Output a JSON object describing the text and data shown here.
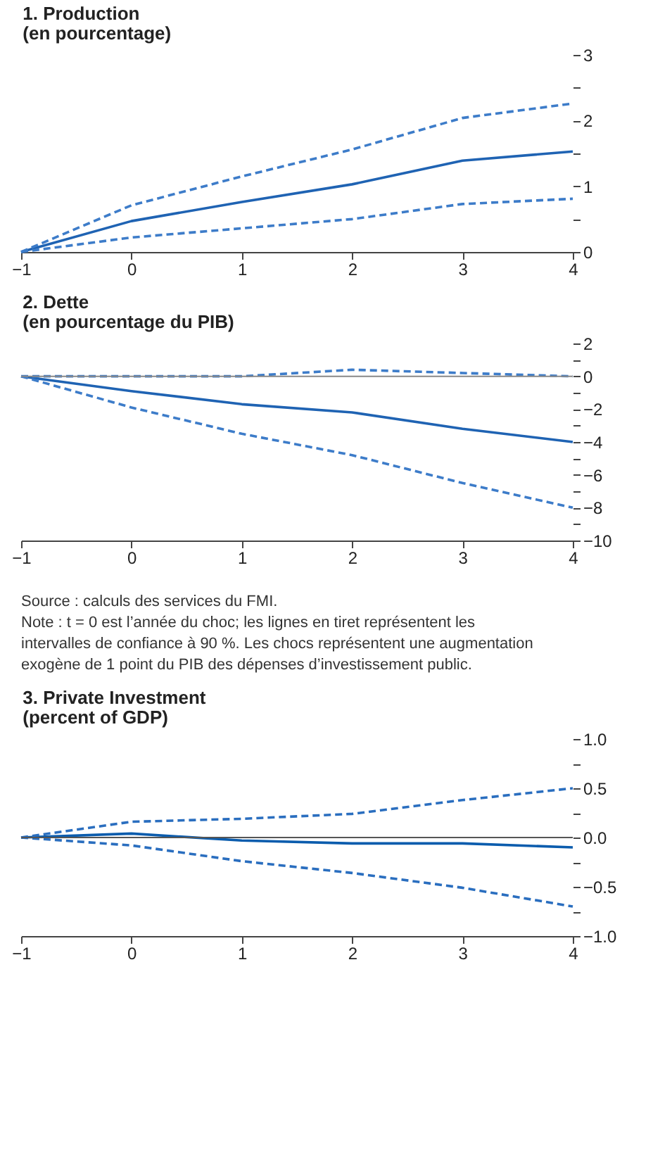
{
  "chart_data": [
    {
      "type": "line",
      "title": "1. Production",
      "subtitle": "(en pourcentage)",
      "x": [
        -1,
        0,
        1,
        2,
        3,
        4
      ],
      "xlim": [
        -1,
        4
      ],
      "xticks": [
        -1,
        0,
        1,
        2,
        3,
        4
      ],
      "ylim": [
        0,
        3
      ],
      "yticks": [
        0,
        {
          "value": 0.5,
          "label": null
        },
        1,
        {
          "value": 1.5,
          "label": null
        },
        2,
        {
          "value": 2.5,
          "label": null
        },
        3
      ],
      "grid": false,
      "series": [
        {
          "color": "#1f63b3",
          "line_style": "solid",
          "values": [
            0,
            0.47,
            0.76,
            1.03,
            1.39,
            1.53
          ]
        },
        {
          "color": "#3d7cc9",
          "line_style": "dashed",
          "values": [
            0,
            0.71,
            1.15,
            1.56,
            2.04,
            2.26
          ]
        },
        {
          "color": "#3d7cc9",
          "line_style": "dashed",
          "values": [
            0,
            0.22,
            0.36,
            0.5,
            0.73,
            0.81
          ]
        }
      ]
    },
    {
      "type": "line",
      "title": "2. Dette",
      "subtitle": "(en pourcentage du PIB)",
      "x": [
        -1,
        0,
        1,
        2,
        3,
        4
      ],
      "xlim": [
        -1,
        4
      ],
      "xticks": [
        -1,
        0,
        1,
        2,
        3,
        4
      ],
      "ylim": [
        -10,
        2
      ],
      "yticks": [
        -10,
        {
          "value": -9,
          "label": null
        },
        -8,
        {
          "value": -7,
          "label": null
        },
        -6,
        {
          "value": -5,
          "label": null
        },
        -4,
        {
          "value": -3,
          "label": null
        },
        -2,
        {
          "value": -1,
          "label": null
        },
        0,
        {
          "value": 1,
          "label": null
        },
        2
      ],
      "grid": false,
      "ref_lines": [
        {
          "axis": "y",
          "value": 0,
          "color": "#888888"
        }
      ],
      "annotations": [
        "Source : calculs des services du FMI.",
        "Note : t = 0 est l’année du choc; les lignes en tiret représentent les intervalles de confiance à 90 %. Les chocs représentent une augmentation exogène de 1 point du PIB des dépenses d’investissement public."
      ],
      "series": [
        {
          "color": "#1f63b3",
          "line_style": "solid",
          "values": [
            0,
            -0.9,
            -1.7,
            -2.2,
            -3.2,
            -4.0
          ]
        },
        {
          "color": "#3d7cc9",
          "line_style": "dashed",
          "values": [
            0,
            0.0,
            0.0,
            0.4,
            0.2,
            0.0
          ]
        },
        {
          "color": "#3d7cc9",
          "line_style": "dashed",
          "values": [
            0,
            -1.9,
            -3.5,
            -4.8,
            -6.5,
            -8.0
          ]
        }
      ]
    },
    {
      "type": "line",
      "title": "3. Private Investment",
      "subtitle": "(percent of GDP)",
      "x": [
        -1,
        0,
        1,
        2,
        3,
        4
      ],
      "xlim": [
        -1,
        4
      ],
      "xticks": [
        -1,
        0,
        1,
        2,
        3,
        4
      ],
      "ylim": [
        -1,
        1
      ],
      "yticks": [
        {
          "value": -1,
          "label": "−1.0"
        },
        {
          "value": -0.75,
          "label": null
        },
        {
          "value": -0.5,
          "label": "−0.5"
        },
        {
          "value": -0.25,
          "label": null
        },
        {
          "value": 0,
          "label": "0.0"
        },
        {
          "value": 0.25,
          "label": null
        },
        0.5,
        {
          "value": 0.75,
          "label": null
        },
        {
          "value": 1,
          "label": "1.0"
        }
      ],
      "grid": false,
      "ref_lines": [
        {
          "axis": "y",
          "value": 0,
          "color": "#555555"
        }
      ],
      "series": [
        {
          "color": "#0b5cad",
          "line_style": "solid",
          "values": [
            0,
            0.04,
            -0.03,
            -0.06,
            -0.06,
            -0.1
          ]
        },
        {
          "color": "#2a6ebf",
          "line_style": "dashed",
          "values": [
            0,
            0.16,
            0.19,
            0.24,
            0.38,
            0.5
          ]
        },
        {
          "color": "#2a6ebf",
          "line_style": "dashed",
          "values": [
            0,
            -0.08,
            -0.24,
            -0.36,
            -0.51,
            -0.7
          ]
        }
      ]
    }
  ]
}
